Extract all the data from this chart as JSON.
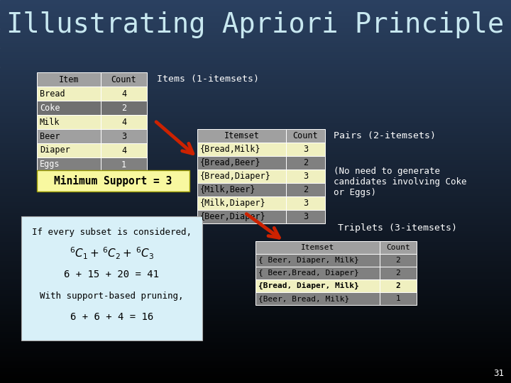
{
  "title": "Illustrating Apriori Principle",
  "title_color": "#c8e8f0",
  "title_fontsize": 28,
  "slide_number": "31",
  "table1_header": [
    "Item",
    "Count"
  ],
  "table1_rows": [
    [
      "Bread",
      "4"
    ],
    [
      "Coke",
      "2"
    ],
    [
      "Milk",
      "4"
    ],
    [
      "Beer",
      "3"
    ],
    [
      "Diaper",
      "4"
    ],
    [
      "Eggs",
      "1"
    ]
  ],
  "table1_row_colors": [
    "#f0f0c0",
    "#707070",
    "#f0f0c0",
    "#a0a0a0",
    "#f0f0c0",
    "#808080"
  ],
  "table1_text_colors": [
    "black",
    "white",
    "black",
    "black",
    "black",
    "white"
  ],
  "table1_header_color": "#a0a0a0",
  "label_1itemsets": "Items (1-itemsets)",
  "table2_header": [
    "Itemset",
    "Count"
  ],
  "table2_rows": [
    [
      "{Bread,Milk}",
      "3"
    ],
    [
      "{Bread,Beer}",
      "2"
    ],
    [
      "{Bread,Diaper}",
      "3"
    ],
    [
      "{Milk,Beer}",
      "2"
    ],
    [
      "{Milk,Diaper}",
      "3"
    ],
    [
      "{Beer,Diaper}",
      "3"
    ]
  ],
  "table2_row_colors": [
    "#f0f0c0",
    "#808080",
    "#f0f0c0",
    "#808080",
    "#f0f0c0",
    "#808080"
  ],
  "table2_text_colors": [
    "black",
    "black",
    "black",
    "black",
    "black",
    "black"
  ],
  "table2_header_color": "#a0a0a0",
  "label_2itemsets": "Pairs (2-itemsets)",
  "label_note": "(No need to generate\ncandidates involving Coke\nor Eggs)",
  "minsup_label": "Minimum Support = 3",
  "minsup_bg": "#f8f8a0",
  "label_3itemsets": "Triplets (3-itemsets)",
  "table3_header": [
    "Itemset",
    "Count"
  ],
  "table3_rows": [
    [
      "{ Beer, Diaper, Milk}",
      "2"
    ],
    [
      "{ Beer,Bread, Diaper}",
      "2"
    ],
    [
      "{Bread, Diaper, Milk}",
      "2"
    ],
    [
      "{Beer, Bread, Milk}",
      "1"
    ]
  ],
  "table3_row_colors": [
    "#808080",
    "#808080",
    "#f0f0c0",
    "#808080"
  ],
  "table3_text_colors": [
    "black",
    "black",
    "black",
    "black"
  ],
  "table3_highlight_row": 2,
  "table3_header_color": "#a0a0a0",
  "subset_box_bg": "#d8f0f8",
  "subset_lines": [
    "If every subset is considered,",
    "",
    "6 + 15 + 20 = 41",
    "With support-based pruning,",
    "6 + 6 + 4 = 16"
  ],
  "subset_c_line": "C₁ +  C₂ +  C₃",
  "arrow_color": "#cc2200",
  "bg_top": "#000000",
  "bg_bottom": "#2a4060"
}
